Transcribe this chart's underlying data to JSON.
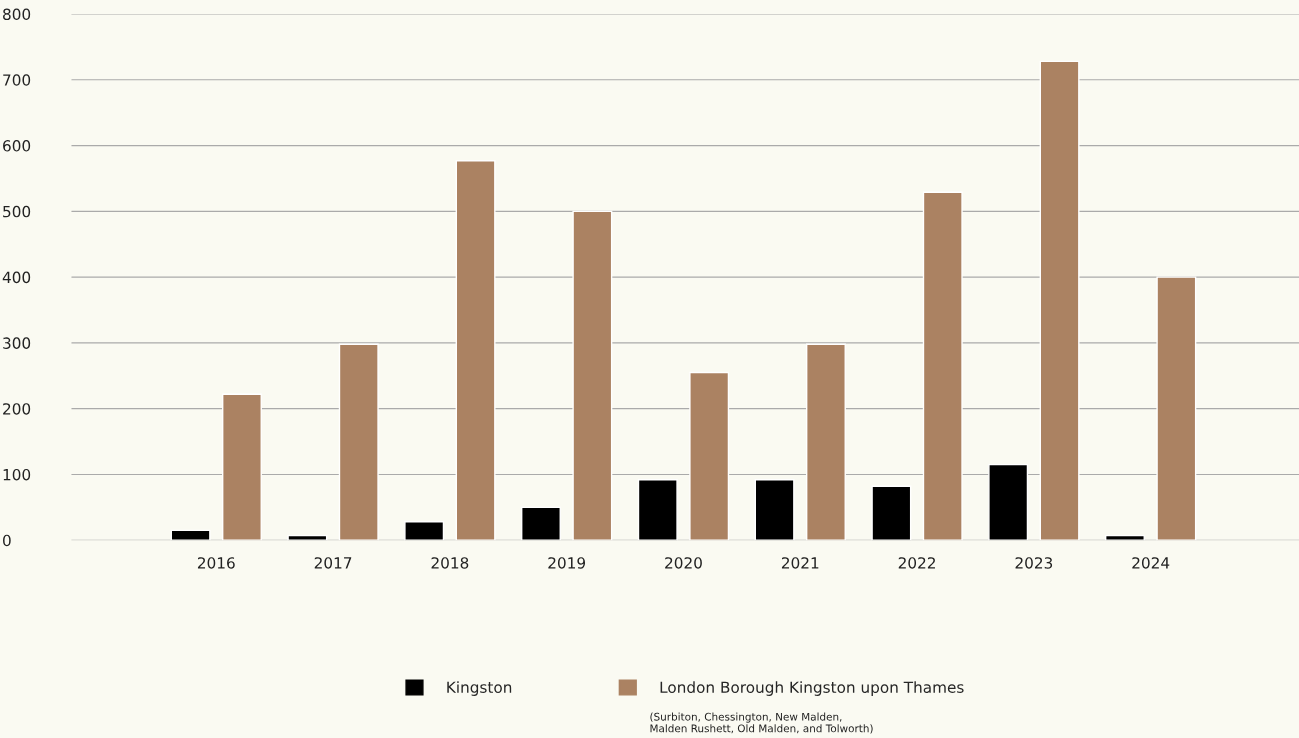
{
  "chart_data": {
    "type": "bar",
    "categories": [
      "2016",
      "2017",
      "2018",
      "2019",
      "2020",
      "2021",
      "2022",
      "2023",
      "2024"
    ],
    "series": [
      {
        "name": "Kingston",
        "color": "#000000",
        "values": [
          15,
          7,
          28,
          50,
          92,
          92,
          82,
          115,
          7
        ]
      },
      {
        "name": "London Borough Kingston upon Thames",
        "color": "#ab8262",
        "values": [
          222,
          298,
          577,
          500,
          255,
          298,
          529,
          728,
          400
        ]
      }
    ],
    "ylim": [
      0,
      800
    ],
    "yticks": [
      0,
      100,
      200,
      300,
      400,
      500,
      600,
      700,
      800
    ],
    "grid": "y",
    "legend": "bottom",
    "annotations": [
      "(Surbiton, Chessington, New Malden,\nMalden Rushett, Old Malden, and Tolworth)"
    ]
  }
}
